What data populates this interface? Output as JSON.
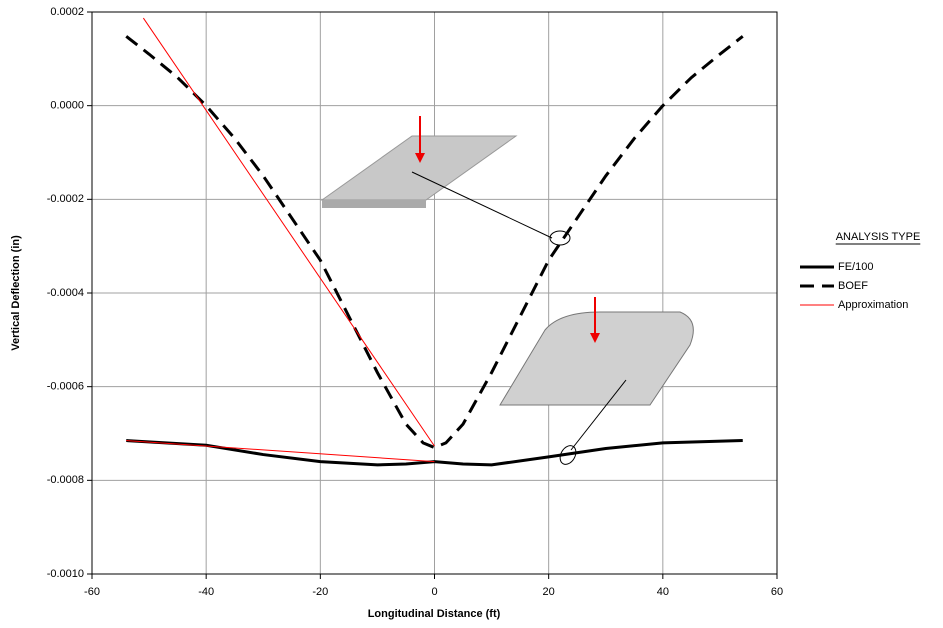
{
  "chart_data": {
    "type": "line",
    "x_label": "Longitudinal Distance (ft)",
    "y_label": "Vertical Deflection (in)",
    "xlim": [
      -60,
      60
    ],
    "xticks": [
      -60,
      -40,
      -20,
      0,
      20,
      40,
      60
    ],
    "ylim": [
      -0.001,
      0.0002
    ],
    "yticks": [
      {
        "value": 0.0002,
        "label": "0.0002"
      },
      {
        "value": 0,
        "label": "0.0000"
      },
      {
        "value": -0.0002,
        "label": "-0.0002"
      },
      {
        "value": -0.0004,
        "label": "-0.0004"
      },
      {
        "value": -0.0006,
        "label": "-0.0006"
      },
      {
        "value": -0.0008,
        "label": "-0.0008"
      },
      {
        "value": -0.001,
        "label": "-0.0010"
      }
    ],
    "grid": true,
    "legend_title": "ANALYSIS TYPE",
    "legend_position": "right",
    "series": [
      {
        "name": "FE/100",
        "color": "#000000",
        "line_style": "solid",
        "line_width": 3,
        "x": [
          -54,
          -40,
          -30,
          -20,
          -10,
          -5,
          0,
          5,
          10,
          20,
          30,
          40,
          54
        ],
        "values": [
          -0.000715,
          -0.000725,
          -0.000745,
          -0.00076,
          -0.000767,
          -0.000765,
          -0.00076,
          -0.000765,
          -0.000767,
          -0.00075,
          -0.000732,
          -0.00072,
          -0.000715
        ]
      },
      {
        "name": "BOEF",
        "color": "#000000",
        "line_style": "dashed",
        "line_width": 3,
        "x": [
          -54,
          -50,
          -45,
          -40,
          -35,
          -30,
          -25,
          -20,
          -15,
          -10,
          -5,
          -2,
          0,
          2,
          5,
          10,
          15,
          20,
          25,
          30,
          35,
          40,
          45,
          50,
          54
        ],
        "values": [
          0.000148,
          0.00011,
          6e-05,
          0,
          -7e-05,
          -0.00015,
          -0.00024,
          -0.00033,
          -0.00045,
          -0.00057,
          -0.00068,
          -0.00072,
          -0.00073,
          -0.00072,
          -0.00068,
          -0.00057,
          -0.00045,
          -0.00033,
          -0.00024,
          -0.00015,
          -7e-05,
          0,
          6e-05,
          0.00011,
          0.000148
        ]
      },
      {
        "name": "Approximation",
        "color": "#ff0000",
        "line_style": "solid",
        "line_width": 1,
        "x": [
          -51,
          0,
          0,
          -54,
          0
        ],
        "values": [
          0.000187,
          -0.000727,
          null,
          -0.000715,
          -0.00076
        ]
      }
    ]
  }
}
